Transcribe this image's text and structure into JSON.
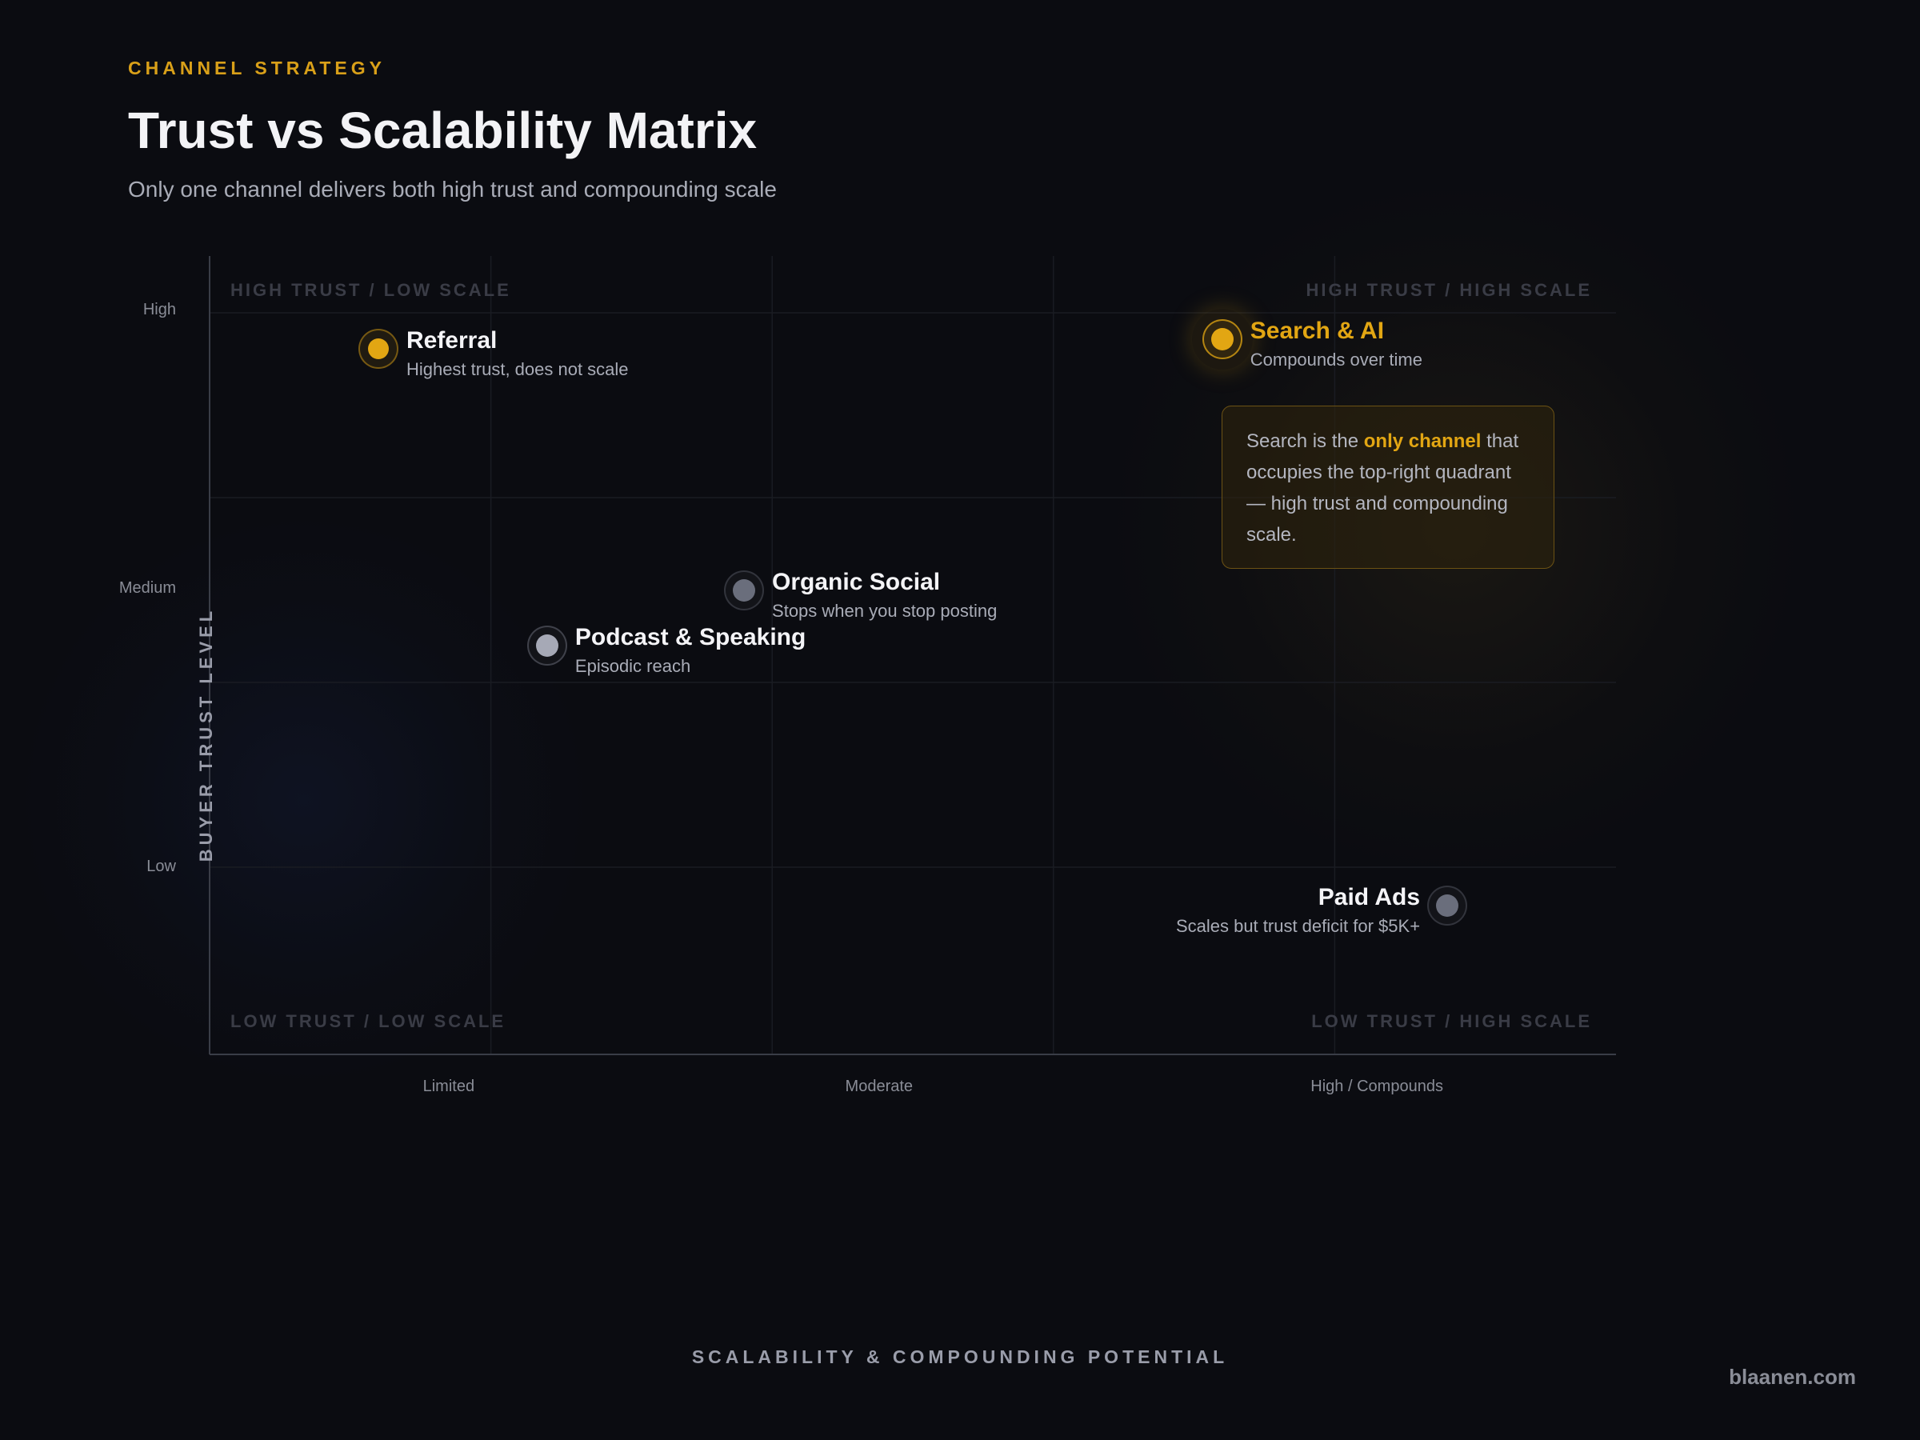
{
  "header": {
    "eyebrow": "CHANNEL STRATEGY",
    "title": "Trust vs Scalability Matrix",
    "subtitle": "Only one channel delivers both high trust and compounding scale"
  },
  "colors": {
    "accent": "#e2a613",
    "muted_point": "#6a6e7c",
    "light_point": "#a6a9b6",
    "background": "#0b0c11"
  },
  "chart_data": {
    "type": "scatter",
    "title": "Trust vs Scalability Matrix",
    "xlabel": "SCALABILITY & COMPOUNDING POTENTIAL",
    "ylabel": "BUYER TRUST LEVEL",
    "xlim": [
      0,
      5
    ],
    "ylim": [
      0,
      4.3
    ],
    "grid": true,
    "x_ticks": [
      {
        "label": "Limited",
        "value": 0.85
      },
      {
        "label": "Moderate",
        "value": 2.38
      },
      {
        "label": "High / Compounds",
        "value": 4.15
      }
    ],
    "y_ticks": [
      {
        "label": "High",
        "value": 4.0
      },
      {
        "label": "Medium",
        "value": 2.5
      },
      {
        "label": "Low",
        "value": 1.0
      }
    ],
    "quadrants": {
      "top_left": "HIGH TRUST / LOW SCALE",
      "top_right": "HIGH TRUST / HIGH SCALE",
      "bottom_left": "LOW TRUST / LOW SCALE",
      "bottom_right": "LOW TRUST / HIGH SCALE"
    },
    "points": [
      {
        "name": "Referral",
        "description": "Highest trust, does not scale",
        "x": 0.6,
        "y": 3.8,
        "style": "gold"
      },
      {
        "name": "Search & AI",
        "description": "Compounds over time",
        "x": 3.6,
        "y": 3.85,
        "style": "gold-emphasis"
      },
      {
        "name": "Organic Social",
        "description": "Stops when you stop posting",
        "x": 1.9,
        "y": 2.5,
        "style": "muted"
      },
      {
        "name": "Podcast & Speaking",
        "description": "Episodic reach",
        "x": 1.2,
        "y": 2.2,
        "style": "light"
      },
      {
        "name": "Paid Ads",
        "description": "Scales but trust deficit for $5K+",
        "x": 4.4,
        "y": 0.8,
        "style": "muted"
      }
    ],
    "callout": {
      "before": "Search is the ",
      "highlight": "only channel",
      "after": " that occupies the top-right quadrant — high trust and compounding scale."
    }
  },
  "footer": {
    "brand": "blaanen.com"
  }
}
